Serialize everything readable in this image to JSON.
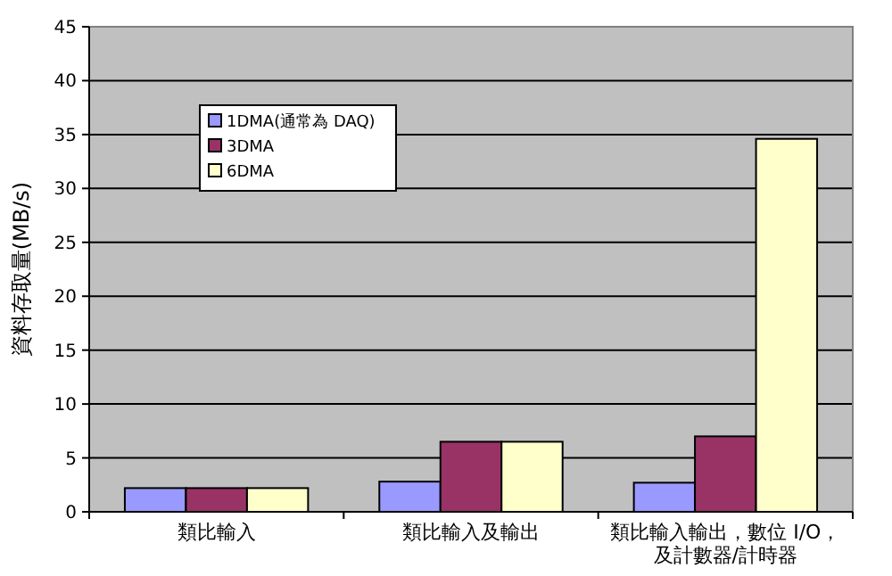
{
  "chart_data": {
    "type": "bar",
    "ylabel": "資料存取量(MB/s)",
    "categories": [
      "類比輸入",
      "類比輸入及輸出",
      "類比輸入輸出，數位 I/O，及計數器/計時器"
    ],
    "series": [
      {
        "name": "1DMA(通常為 DAQ)",
        "color": "#9999ff",
        "values": [
          2.2,
          2.8,
          2.7
        ]
      },
      {
        "name": "3DMA",
        "color": "#993366",
        "values": [
          2.2,
          6.5,
          7.0
        ]
      },
      {
        "name": "6DMA",
        "color": "#ffffcc",
        "values": [
          2.2,
          6.5,
          34.6
        ]
      }
    ],
    "ylim": [
      0,
      45
    ],
    "yticks": [
      0,
      5,
      10,
      15,
      20,
      25,
      30,
      35,
      40,
      45
    ],
    "grid": "y",
    "legend": "top left"
  }
}
